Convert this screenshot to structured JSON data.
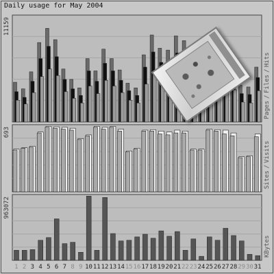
{
  "title": "Daily usage for May 2004",
  "chart_data": [
    {
      "type": "bar",
      "panel": "hits-files-pages",
      "categories": [
        "1",
        "2",
        "3",
        "4",
        "5",
        "6",
        "7",
        "8",
        "9",
        "10",
        "11",
        "12",
        "13",
        "14",
        "15",
        "16",
        "17",
        "18",
        "19",
        "20",
        "21",
        "22",
        "23",
        "24",
        "25",
        "26",
        "27",
        "28",
        "29",
        "30",
        "31"
      ],
      "ymax_label": "11159",
      "ylim": [
        0,
        11159
      ],
      "ylabel_parts": [
        "Pages",
        "Files",
        "Hits"
      ],
      "series": [
        {
          "name": "Hits",
          "color": "#6a6a6a",
          "values": [
            4200,
            3500,
            5300,
            8400,
            9900,
            8700,
            5600,
            4500,
            3600,
            6700,
            5400,
            7700,
            6700,
            5500,
            4100,
            3600,
            7100,
            9200,
            7800,
            7600,
            9100,
            8600,
            7300,
            7200,
            7500,
            8100,
            8300,
            6000,
            3900,
            3700,
            5800
          ]
        },
        {
          "name": "Files",
          "color": "#111111",
          "values": [
            3200,
            2600,
            4300,
            6700,
            8000,
            6900,
            4500,
            3500,
            2800,
            5400,
            4300,
            6200,
            5400,
            4400,
            3300,
            2800,
            5800,
            7400,
            6300,
            6100,
            7300,
            7000,
            5900,
            5800,
            6100,
            6600,
            6700,
            4900,
            3000,
            2900,
            4700
          ]
        },
        {
          "name": "Pages",
          "color": "#9a9a9a",
          "values": [
            2300,
            1900,
            3100,
            4800,
            5600,
            4900,
            3200,
            2500,
            2000,
            3800,
            3000,
            4400,
            3800,
            3100,
            2300,
            2000,
            4000,
            5200,
            4400,
            4300,
            5100,
            4900,
            4100,
            4100,
            4300,
            4600,
            4700,
            3400,
            2100,
            2000,
            3300
          ]
        }
      ]
    },
    {
      "type": "bar",
      "panel": "visits-sites",
      "categories": [
        "1",
        "2",
        "3",
        "4",
        "5",
        "6",
        "7",
        "8",
        "9",
        "10",
        "11",
        "12",
        "13",
        "14",
        "15",
        "16",
        "17",
        "18",
        "19",
        "20",
        "21",
        "22",
        "23",
        "24",
        "25",
        "26",
        "27",
        "28",
        "29",
        "30",
        "31"
      ],
      "ymax_label": "693",
      "ylim": [
        0,
        693
      ],
      "ylabel_parts": [
        "Sites",
        "Visits"
      ],
      "series": [
        {
          "name": "Visits",
          "color": "#f0f0f0",
          "values": [
            450,
            465,
            480,
            630,
            690,
            685,
            680,
            670,
            560,
            600,
            690,
            680,
            690,
            660,
            430,
            460,
            650,
            655,
            640,
            630,
            650,
            640,
            450,
            450,
            660,
            655,
            650,
            620,
            370,
            380,
            610
          ]
        },
        {
          "name": "Sites",
          "color": "#a9a9a9",
          "values": [
            440,
            460,
            470,
            620,
            680,
            670,
            660,
            650,
            550,
            590,
            680,
            660,
            680,
            640,
            420,
            450,
            640,
            640,
            610,
            600,
            620,
            620,
            440,
            440,
            650,
            640,
            610,
            590,
            360,
            370,
            580
          ]
        }
      ]
    },
    {
      "type": "bar",
      "panel": "kbytes",
      "categories": [
        "1",
        "2",
        "3",
        "4",
        "5",
        "6",
        "7",
        "8",
        "9",
        "10",
        "11",
        "12",
        "13",
        "14",
        "15",
        "16",
        "17",
        "18",
        "19",
        "20",
        "21",
        "22",
        "23",
        "24",
        "25",
        "26",
        "27",
        "28",
        "29",
        "30",
        "31"
      ],
      "ymax_label": "963072",
      "ylim": [
        0,
        963072
      ],
      "ylabel_parts": [
        "KBytes"
      ],
      "series": [
        {
          "name": "KBytes",
          "color": "#555555",
          "values": [
            150000,
            150000,
            160000,
            300000,
            340000,
            620000,
            250000,
            270000,
            120000,
            960000,
            150000,
            940000,
            400000,
            290000,
            300000,
            350000,
            390000,
            330000,
            440000,
            360000,
            430000,
            150000,
            320000,
            60000,
            350000,
            300000,
            480000,
            370000,
            290000,
            90000,
            70000
          ]
        }
      ]
    }
  ],
  "sticker": {
    "icon": "decal-sticker"
  }
}
